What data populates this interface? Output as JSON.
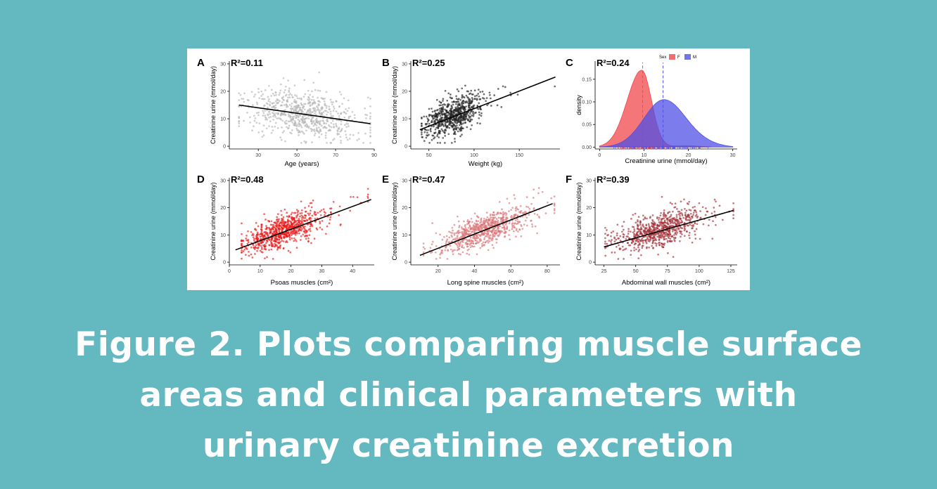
{
  "caption": {
    "lines": [
      "Figure 2. Plots comparing muscle surface",
      "areas and clinical parameters with",
      "urinary creatinine excretion"
    ]
  },
  "colors": {
    "background": "#64b8bf",
    "grey_points": "#b5b5b5",
    "black_points": "#222222",
    "red_points": "#e81818",
    "pink_points": "#d9767a",
    "darkred_points": "#a23038",
    "female_fill": "#f0484c",
    "male_fill": "#5050e6"
  },
  "chart_data": [
    {
      "panel": "A",
      "type": "scatter",
      "r2_label": "R²=0.11",
      "xlabel": "Age (years)",
      "ylabel": "Creatinine urine (mmol/day)",
      "xlim": [
        15,
        90
      ],
      "ylim": [
        -1,
        31
      ],
      "xticks": [
        30,
        50,
        70,
        90
      ],
      "yticks": [
        0,
        10,
        20,
        30
      ],
      "point_color": "grey_points",
      "points": {
        "x_mean": 52,
        "x_sd": 14,
        "x_range": [
          20,
          88
        ],
        "slope": -0.1,
        "intercept": 17,
        "resid_sd": 4.3,
        "n": 700,
        "seed": 11
      },
      "fit_line": {
        "x": [
          20,
          88
        ],
        "y": [
          15.0,
          8.2
        ]
      }
    },
    {
      "panel": "B",
      "type": "scatter",
      "r2_label": "R²=0.25",
      "xlabel": "Weight (kg)",
      "ylabel": "Creatinine urine (mmol/day)",
      "xlim": [
        30,
        195
      ],
      "ylim": [
        -1,
        31
      ],
      "xticks": [
        50,
        100,
        150
      ],
      "yticks": [
        0,
        10,
        20,
        30
      ],
      "point_color": "black_points",
      "points": {
        "x_mean": 77,
        "x_sd": 16,
        "x_range": [
          42,
          190
        ],
        "slope": 0.12,
        "intercept": 2.0,
        "resid_sd": 3.3,
        "n": 700,
        "seed": 25
      },
      "fit_line": {
        "x": [
          40,
          190
        ],
        "y": [
          6.0,
          25.2
        ]
      }
    },
    {
      "panel": "C",
      "type": "area",
      "r2_label": "R²=0.24",
      "xlabel": "Creatinine urine (mmol/day)",
      "ylabel": "density",
      "xlim": [
        -1,
        31
      ],
      "ylim": [
        -0.004,
        0.19
      ],
      "xticks": [
        0,
        10,
        20,
        30
      ],
      "yticks": [
        0.0,
        0.05,
        0.1,
        0.15
      ],
      "ytick_labels": [
        "0.00",
        "0.05",
        "0.10",
        "0.15"
      ],
      "legend": {
        "title": "Sex",
        "entries": [
          "F",
          "M"
        ],
        "position": "top"
      },
      "series": [
        {
          "name": "F",
          "color": "female_fill",
          "peak_x": 9.5,
          "mean_line": 9.7,
          "sigma_left": 3.3,
          "sigma_right": 2.2,
          "peak_y": 0.17,
          "x_range": [
            0,
            25
          ]
        },
        {
          "name": "M",
          "color": "male_fill",
          "peak_x": 14.5,
          "mean_line": 14.3,
          "sigma_left": 4.5,
          "sigma_right": 5.0,
          "peak_y": 0.105,
          "x_range": [
            0,
            30
          ]
        }
      ]
    },
    {
      "panel": "D",
      "type": "scatter",
      "r2_label": "R²=0.48",
      "xlabel": "Psoas muscles (cm²)",
      "ylabel": "Creatinine urine (mmol/day)",
      "xlim": [
        0,
        47
      ],
      "ylim": [
        -1,
        31
      ],
      "xticks": [
        0,
        10,
        20,
        30,
        40
      ],
      "yticks": [
        0,
        10,
        20,
        30
      ],
      "point_color": "red_points",
      "points": {
        "x_mean": 17,
        "x_sd": 6,
        "x_range": [
          4,
          45
        ],
        "slope": 0.4,
        "intercept": 4.4,
        "resid_sd": 2.8,
        "n": 750,
        "seed": 48
      },
      "fit_line": {
        "x": [
          2,
          46
        ],
        "y": [
          4.5,
          23.0
        ]
      }
    },
    {
      "panel": "E",
      "type": "scatter",
      "r2_label": "R²=0.47",
      "xlabel": "Long spine muscles  (cm²)",
      "ylabel": "Creatinine urine (mmol/day)",
      "xlim": [
        5,
        87
      ],
      "ylim": [
        -1,
        31
      ],
      "xticks": [
        20,
        40,
        60,
        80
      ],
      "yticks": [
        0,
        10,
        20,
        30
      ],
      "point_color": "pink_points",
      "points": {
        "x_mean": 45,
        "x_sd": 12,
        "x_range": [
          12,
          84
        ],
        "slope": 0.24,
        "intercept": 1.0,
        "resid_sd": 2.9,
        "n": 750,
        "seed": 47
      },
      "fit_line": {
        "x": [
          10,
          83
        ],
        "y": [
          2.5,
          21.5
        ]
      }
    },
    {
      "panel": "F",
      "type": "scatter",
      "r2_label": "R²=0.39",
      "xlabel": "Abdominal wall muscles (cm²)",
      "ylabel": "Creatinine urine (mmol/day)",
      "xlim": [
        18,
        130
      ],
      "ylim": [
        -1,
        31
      ],
      "xticks": [
        25,
        50,
        75,
        100,
        125
      ],
      "yticks": [
        0,
        10,
        20,
        30
      ],
      "point_color": "darkred_points",
      "points": {
        "x_mean": 68,
        "x_sd": 18,
        "x_range": [
          26,
          127
        ],
        "slope": 0.13,
        "intercept": 3.0,
        "resid_sd": 3.0,
        "n": 750,
        "seed": 39
      },
      "fit_line": {
        "x": [
          25,
          127
        ],
        "y": [
          5.6,
          19.0
        ]
      }
    }
  ]
}
